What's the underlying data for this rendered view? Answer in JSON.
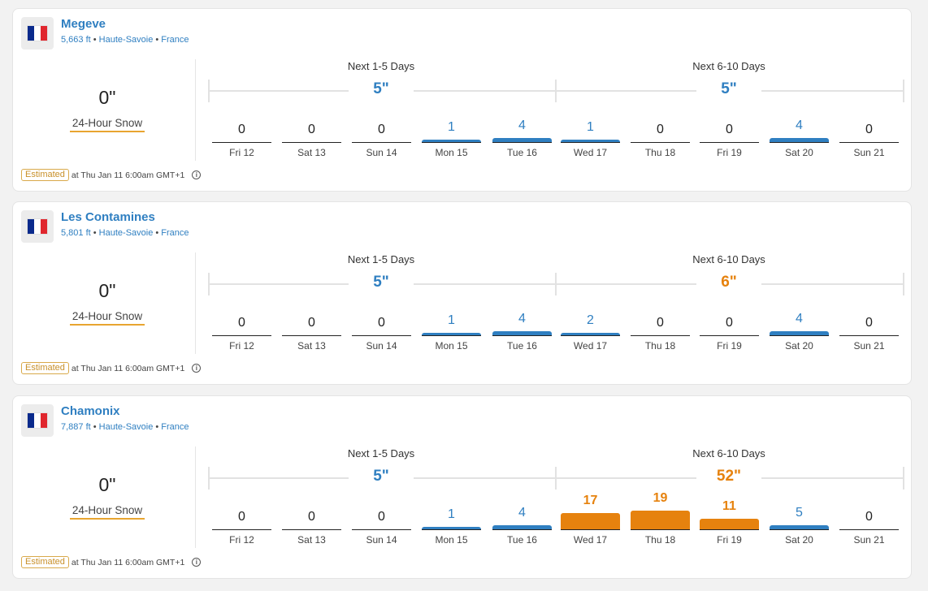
{
  "colors": {
    "blue": "#2f7fc1",
    "orange": "#e6820e",
    "flag_blue": "#0a2a8c",
    "flag_white": "#ffffff",
    "flag_red": "#e0262d"
  },
  "resorts": [
    {
      "name": "Megeve",
      "elevation": "5,663 ft",
      "region": "Haute-Savoie",
      "country": "France",
      "current_value": "0\"",
      "current_label": "24-Hour Snow",
      "period1_label": "Next 1-5 Days",
      "period1_total": "5\"",
      "period1_level": "normal",
      "period2_label": "Next 6-10 Days",
      "period2_total": "5\"",
      "period2_level": "normal",
      "days": [
        {
          "label": "Fri 12",
          "value": 0
        },
        {
          "label": "Sat 13",
          "value": 0
        },
        {
          "label": "Sun 14",
          "value": 0
        },
        {
          "label": "Mon 15",
          "value": 1
        },
        {
          "label": "Tue 16",
          "value": 4
        },
        {
          "label": "Wed 17",
          "value": 1
        },
        {
          "label": "Thu 18",
          "value": 0
        },
        {
          "label": "Fri 19",
          "value": 0
        },
        {
          "label": "Sat 20",
          "value": 4
        },
        {
          "label": "Sun 21",
          "value": 0
        }
      ],
      "estimated_label": "Estimated",
      "timestamp": "at Thu Jan 11 6:00am GMT+1"
    },
    {
      "name": "Les Contamines",
      "elevation": "5,801 ft",
      "region": "Haute-Savoie",
      "country": "France",
      "current_value": "0\"",
      "current_label": "24-Hour Snow",
      "period1_label": "Next 1-5 Days",
      "period1_total": "5\"",
      "period1_level": "normal",
      "period2_label": "Next 6-10 Days",
      "period2_total": "6\"",
      "period2_level": "high",
      "days": [
        {
          "label": "Fri 12",
          "value": 0
        },
        {
          "label": "Sat 13",
          "value": 0
        },
        {
          "label": "Sun 14",
          "value": 0
        },
        {
          "label": "Mon 15",
          "value": 1
        },
        {
          "label": "Tue 16",
          "value": 4
        },
        {
          "label": "Wed 17",
          "value": 2
        },
        {
          "label": "Thu 18",
          "value": 0
        },
        {
          "label": "Fri 19",
          "value": 0
        },
        {
          "label": "Sat 20",
          "value": 4
        },
        {
          "label": "Sun 21",
          "value": 0
        }
      ],
      "estimated_label": "Estimated",
      "timestamp": "at Thu Jan 11 6:00am GMT+1"
    },
    {
      "name": "Chamonix",
      "elevation": "7,887 ft",
      "region": "Haute-Savoie",
      "country": "France",
      "current_value": "0\"",
      "current_label": "24-Hour Snow",
      "period1_label": "Next 1-5 Days",
      "period1_total": "5\"",
      "period1_level": "normal",
      "period2_label": "Next 6-10 Days",
      "period2_total": "52\"",
      "period2_level": "high",
      "days": [
        {
          "label": "Fri 12",
          "value": 0
        },
        {
          "label": "Sat 13",
          "value": 0
        },
        {
          "label": "Sun 14",
          "value": 0
        },
        {
          "label": "Mon 15",
          "value": 1
        },
        {
          "label": "Tue 16",
          "value": 4
        },
        {
          "label": "Wed 17",
          "value": 17
        },
        {
          "label": "Thu 18",
          "value": 19
        },
        {
          "label": "Fri 19",
          "value": 11
        },
        {
          "label": "Sat 20",
          "value": 5
        },
        {
          "label": "Sun 21",
          "value": 0
        }
      ],
      "estimated_label": "Estimated",
      "timestamp": "at Thu Jan 11 6:00am GMT+1"
    }
  ]
}
